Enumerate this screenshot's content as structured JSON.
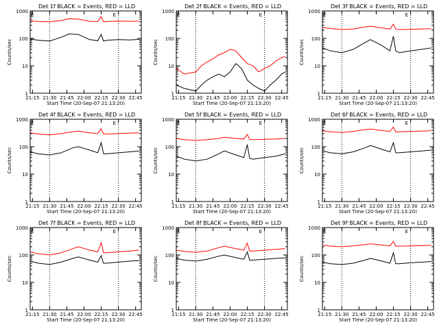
{
  "figure": {
    "y_axis_label": "Counts/sec",
    "x_axis_label": "Start Time (20-Sep-07 21:13:20)",
    "edge_marker_text": "E",
    "colors": {
      "events": "#000000",
      "lld": "#ff0000"
    },
    "layout": "3x3 grid"
  },
  "chart_data": [
    {
      "type": "line",
      "title": "Det 1f BLACK = Events, RED = LLD",
      "xlabel": "Start Time (20-Sep-07 21:13:20)",
      "ylabel": "Counts/sec",
      "x_ticks": [
        "21:15",
        "21:30",
        "21:45",
        "22:00",
        "22:15",
        "22:30",
        "22:45"
      ],
      "y_ticks": [
        "1",
        "10",
        "100",
        "1000"
      ],
      "yscale": "log",
      "ylim": [
        1,
        1000
      ],
      "dotted_markers_at": [
        "21:30",
        "22:30"
      ],
      "series": [
        {
          "name": "Events",
          "color": "#000000",
          "x": [
            "21:13",
            "21:20",
            "21:30",
            "21:40",
            "21:47",
            "21:55",
            "22:05",
            "22:12",
            "22:15",
            "22:17",
            "22:20",
            "22:30",
            "22:40",
            "22:48"
          ],
          "values": [
            95,
            85,
            80,
            110,
            145,
            140,
            90,
            82,
            140,
            80,
            85,
            90,
            88,
            92
          ]
        },
        {
          "name": "LLD",
          "color": "#ff0000",
          "x": [
            "21:13",
            "21:20",
            "21:30",
            "21:40",
            "21:47",
            "21:55",
            "22:05",
            "22:12",
            "22:15",
            "22:17",
            "22:20",
            "22:30",
            "22:40",
            "22:48"
          ],
          "values": [
            440,
            410,
            400,
            450,
            520,
            500,
            420,
            410,
            620,
            400,
            410,
            430,
            420,
            430
          ]
        }
      ]
    },
    {
      "type": "line",
      "title": "Det 2f BLACK = Events, RED = LLD",
      "xlabel": "Start Time (20-Sep-07 21:13:20)",
      "ylabel": "Counts/sec",
      "x_ticks": [
        "21:15",
        "21:30",
        "21:45",
        "22:00",
        "22:15",
        "22:30",
        "22:45"
      ],
      "y_ticks": [
        "1",
        "10",
        "100",
        "1000"
      ],
      "yscale": "log",
      "ylim": [
        1,
        1000
      ],
      "dotted_markers_at": [
        "21:30",
        "22:30"
      ],
      "series": [
        {
          "name": "Events",
          "color": "#000000",
          "x": [
            "21:13",
            "21:20",
            "21:30",
            "21:35",
            "21:40",
            "21:45",
            "21:50",
            "21:55",
            "22:00",
            "22:05",
            "22:10",
            "22:15",
            "22:20",
            "22:25",
            "22:30",
            "22:35",
            "22:40",
            "22:45",
            "22:48"
          ],
          "values": [
            2,
            1.5,
            1.2,
            2,
            3,
            4,
            5,
            4,
            6,
            12,
            8,
            3,
            2,
            1.5,
            1.2,
            2,
            3,
            5,
            6
          ]
        },
        {
          "name": "LLD",
          "color": "#ff0000",
          "x": [
            "21:13",
            "21:20",
            "21:30",
            "21:35",
            "21:40",
            "21:45",
            "21:50",
            "21:55",
            "22:00",
            "22:05",
            "22:10",
            "22:15",
            "22:20",
            "22:25",
            "22:30",
            "22:35",
            "22:40",
            "22:45",
            "22:48"
          ],
          "values": [
            8,
            5,
            6,
            10,
            14,
            18,
            25,
            30,
            40,
            35,
            20,
            12,
            10,
            6,
            8,
            10,
            15,
            20,
            22
          ]
        }
      ]
    },
    {
      "type": "line",
      "title": "Det 3f BLACK = Events, RED = LLD",
      "xlabel": "Start Time (20-Sep-07 21:13:20)",
      "ylabel": "Counts/sec",
      "x_ticks": [
        "21:15",
        "21:30",
        "21:45",
        "22:00",
        "22:15",
        "22:30",
        "22:45"
      ],
      "y_ticks": [
        "1",
        "10",
        "100",
        "1000"
      ],
      "yscale": "log",
      "ylim": [
        1,
        1000
      ],
      "dotted_markers_at": [
        "21:30",
        "22:30"
      ],
      "series": [
        {
          "name": "Events",
          "color": "#000000",
          "x": [
            "21:13",
            "21:20",
            "21:30",
            "21:40",
            "21:50",
            "21:55",
            "22:05",
            "22:12",
            "22:15",
            "22:17",
            "22:20",
            "22:30",
            "22:40",
            "22:48"
          ],
          "values": [
            45,
            35,
            30,
            40,
            70,
            90,
            55,
            35,
            120,
            35,
            30,
            35,
            40,
            45
          ]
        },
        {
          "name": "LLD",
          "color": "#ff0000",
          "x": [
            "21:13",
            "21:20",
            "21:30",
            "21:40",
            "21:50",
            "21:55",
            "22:05",
            "22:12",
            "22:15",
            "22:17",
            "22:20",
            "22:30",
            "22:40",
            "22:48"
          ],
          "values": [
            250,
            230,
            210,
            220,
            260,
            280,
            240,
            220,
            330,
            215,
            210,
            215,
            220,
            225
          ]
        }
      ]
    },
    {
      "type": "line",
      "title": "Det 4f BLACK = Events, RED = LLD",
      "xlabel": "Start Time (20-Sep-07 21:13:20)",
      "ylabel": "Counts/sec",
      "x_ticks": [
        "21:15",
        "21:30",
        "21:45",
        "22:00",
        "22:15",
        "22:30",
        "22:45"
      ],
      "y_ticks": [
        "1",
        "10",
        "100",
        "1000"
      ],
      "yscale": "log",
      "ylim": [
        1,
        1000
      ],
      "dotted_markers_at": [
        "21:30",
        "22:30"
      ],
      "series": [
        {
          "name": "Events",
          "color": "#000000",
          "x": [
            "21:13",
            "21:20",
            "21:30",
            "21:40",
            "21:50",
            "21:55",
            "22:05",
            "22:12",
            "22:15",
            "22:17",
            "22:20",
            "22:30",
            "22:40",
            "22:48"
          ],
          "values": [
            65,
            55,
            50,
            60,
            90,
            100,
            75,
            60,
            140,
            55,
            55,
            60,
            65,
            70
          ]
        },
        {
          "name": "LLD",
          "color": "#ff0000",
          "x": [
            "21:13",
            "21:20",
            "21:30",
            "21:40",
            "21:50",
            "21:55",
            "22:05",
            "22:12",
            "22:15",
            "22:17",
            "22:20",
            "22:30",
            "22:40",
            "22:48"
          ],
          "values": [
            320,
            290,
            270,
            300,
            350,
            370,
            320,
            300,
            450,
            290,
            290,
            300,
            310,
            320
          ]
        }
      ]
    },
    {
      "type": "line",
      "title": "Det 5f BLACK = Events, RED = LLD",
      "xlabel": "Start Time (20-Sep-07 21:13:20)",
      "ylabel": "Counts/sec",
      "x_ticks": [
        "21:15",
        "21:30",
        "21:45",
        "22:00",
        "22:15",
        "22:30",
        "22:45"
      ],
      "y_ticks": [
        "1",
        "10",
        "100",
        "1000"
      ],
      "yscale": "log",
      "ylim": [
        1,
        1000
      ],
      "dotted_markers_at": [
        "21:30",
        "22:30"
      ],
      "series": [
        {
          "name": "Events",
          "color": "#000000",
          "x": [
            "21:13",
            "21:20",
            "21:30",
            "21:40",
            "21:50",
            "21:55",
            "22:05",
            "22:12",
            "22:15",
            "22:17",
            "22:20",
            "22:30",
            "22:40",
            "22:48"
          ],
          "values": [
            45,
            35,
            30,
            35,
            55,
            70,
            50,
            40,
            120,
            38,
            35,
            40,
            45,
            55
          ]
        },
        {
          "name": "LLD",
          "color": "#ff0000",
          "x": [
            "21:13",
            "21:20",
            "21:30",
            "21:40",
            "21:50",
            "21:55",
            "22:05",
            "22:12",
            "22:15",
            "22:17",
            "22:20",
            "22:30",
            "22:40",
            "22:48"
          ],
          "values": [
            200,
            180,
            170,
            180,
            200,
            220,
            200,
            190,
            280,
            185,
            180,
            185,
            190,
            200
          ]
        }
      ]
    },
    {
      "type": "line",
      "title": "Det 6f BLACK = Events, RED = LLD",
      "xlabel": "Start Time (20-Sep-07 21:13:20)",
      "ylabel": "Counts/sec",
      "x_ticks": [
        "21:15",
        "21:30",
        "21:45",
        "22:00",
        "22:15",
        "22:30",
        "22:45"
      ],
      "y_ticks": [
        "1",
        "10",
        "100",
        "1000"
      ],
      "yscale": "log",
      "ylim": [
        1,
        1000
      ],
      "dotted_markers_at": [
        "21:30",
        "22:30"
      ],
      "series": [
        {
          "name": "Events",
          "color": "#000000",
          "x": [
            "21:13",
            "21:20",
            "21:30",
            "21:40",
            "21:50",
            "21:55",
            "22:05",
            "22:12",
            "22:15",
            "22:17",
            "22:20",
            "22:30",
            "22:40",
            "22:48"
          ],
          "values": [
            70,
            60,
            55,
            65,
            90,
            110,
            80,
            65,
            140,
            60,
            60,
            65,
            70,
            75
          ]
        },
        {
          "name": "LLD",
          "color": "#ff0000",
          "x": [
            "21:13",
            "21:20",
            "21:30",
            "21:40",
            "21:50",
            "21:55",
            "22:05",
            "22:12",
            "22:15",
            "22:17",
            "22:20",
            "22:30",
            "22:40",
            "22:48"
          ],
          "values": [
            380,
            350,
            330,
            360,
            420,
            440,
            390,
            360,
            520,
            350,
            350,
            360,
            370,
            380
          ]
        }
      ]
    },
    {
      "type": "line",
      "title": "Det 7f BLACK = Events, RED = LLD",
      "xlabel": "Start Time (20-Sep-07 21:13:20)",
      "ylabel": "Counts/sec",
      "x_ticks": [
        "21:15",
        "21:30",
        "21:45",
        "22:00",
        "22:15",
        "22:30",
        "22:45"
      ],
      "y_ticks": [
        "1",
        "10",
        "100",
        "1000"
      ],
      "yscale": "log",
      "ylim": [
        1,
        1000
      ],
      "dotted_markers_at": [
        "21:30",
        "22:30"
      ],
      "series": [
        {
          "name": "Events",
          "color": "#000000",
          "x": [
            "21:13",
            "21:20",
            "21:30",
            "21:40",
            "21:50",
            "21:55",
            "22:05",
            "22:12",
            "22:15",
            "22:17",
            "22:20",
            "22:30",
            "22:40",
            "22:48"
          ],
          "values": [
            60,
            50,
            45,
            55,
            75,
            85,
            65,
            55,
            95,
            50,
            50,
            55,
            60,
            62
          ]
        },
        {
          "name": "LLD",
          "color": "#ff0000",
          "x": [
            "21:13",
            "21:20",
            "21:30",
            "21:40",
            "21:50",
            "21:55",
            "22:05",
            "22:12",
            "22:15",
            "22:17",
            "22:20",
            "22:30",
            "22:40",
            "22:48"
          ],
          "values": [
            130,
            110,
            100,
            120,
            170,
            200,
            150,
            130,
            280,
            120,
            120,
            130,
            140,
            150
          ]
        }
      ]
    },
    {
      "type": "line",
      "title": "Det 8f BLACK = Events, RED = LLD",
      "xlabel": "Start Time (20-Sep-07 21:13:20)",
      "ylabel": "Counts/sec",
      "x_ticks": [
        "21:15",
        "21:30",
        "21:45",
        "22:00",
        "22:15",
        "22:30",
        "22:45"
      ],
      "y_ticks": [
        "1",
        "10",
        "100",
        "1000"
      ],
      "yscale": "log",
      "ylim": [
        1,
        1000
      ],
      "dotted_markers_at": [
        "21:30",
        "22:30"
      ],
      "series": [
        {
          "name": "Events",
          "color": "#000000",
          "x": [
            "21:13",
            "21:20",
            "21:30",
            "21:40",
            "21:50",
            "21:55",
            "22:05",
            "22:12",
            "22:15",
            "22:17",
            "22:20",
            "22:30",
            "22:40",
            "22:48"
          ],
          "values": [
            75,
            65,
            60,
            70,
            90,
            100,
            80,
            70,
            130,
            65,
            65,
            70,
            75,
            78
          ]
        },
        {
          "name": "LLD",
          "color": "#ff0000",
          "x": [
            "21:13",
            "21:20",
            "21:30",
            "21:40",
            "21:50",
            "21:55",
            "22:05",
            "22:12",
            "22:15",
            "22:17",
            "22:20",
            "22:30",
            "22:40",
            "22:48"
          ],
          "values": [
            150,
            135,
            125,
            140,
            185,
            210,
            170,
            150,
            270,
            140,
            140,
            150,
            160,
            170
          ]
        }
      ]
    },
    {
      "type": "line",
      "title": "Det 9f BLACK = Events, RED = LLD",
      "xlabel": "Start Time (20-Sep-07 21:13:20)",
      "ylabel": "Counts/sec",
      "x_ticks": [
        "21:15",
        "21:30",
        "21:45",
        "22:00",
        "22:15",
        "22:30",
        "22:45"
      ],
      "y_ticks": [
        "1",
        "10",
        "100",
        "1000"
      ],
      "yscale": "log",
      "ylim": [
        1,
        1000
      ],
      "dotted_markers_at": [
        "21:30",
        "22:30"
      ],
      "series": [
        {
          "name": "Events",
          "color": "#000000",
          "x": [
            "21:13",
            "21:20",
            "21:30",
            "21:40",
            "21:50",
            "21:55",
            "22:05",
            "22:12",
            "22:15",
            "22:17",
            "22:20",
            "22:30",
            "22:40",
            "22:48"
          ],
          "values": [
            55,
            48,
            45,
            50,
            65,
            75,
            60,
            50,
            120,
            48,
            48,
            52,
            55,
            58
          ]
        },
        {
          "name": "LLD",
          "color": "#ff0000",
          "x": [
            "21:13",
            "21:20",
            "21:30",
            "21:40",
            "21:50",
            "21:55",
            "22:05",
            "22:12",
            "22:15",
            "22:17",
            "22:20",
            "22:30",
            "22:40",
            "22:48"
          ],
          "values": [
            230,
            210,
            200,
            215,
            240,
            255,
            230,
            215,
            310,
            210,
            210,
            215,
            220,
            225
          ]
        }
      ]
    }
  ]
}
